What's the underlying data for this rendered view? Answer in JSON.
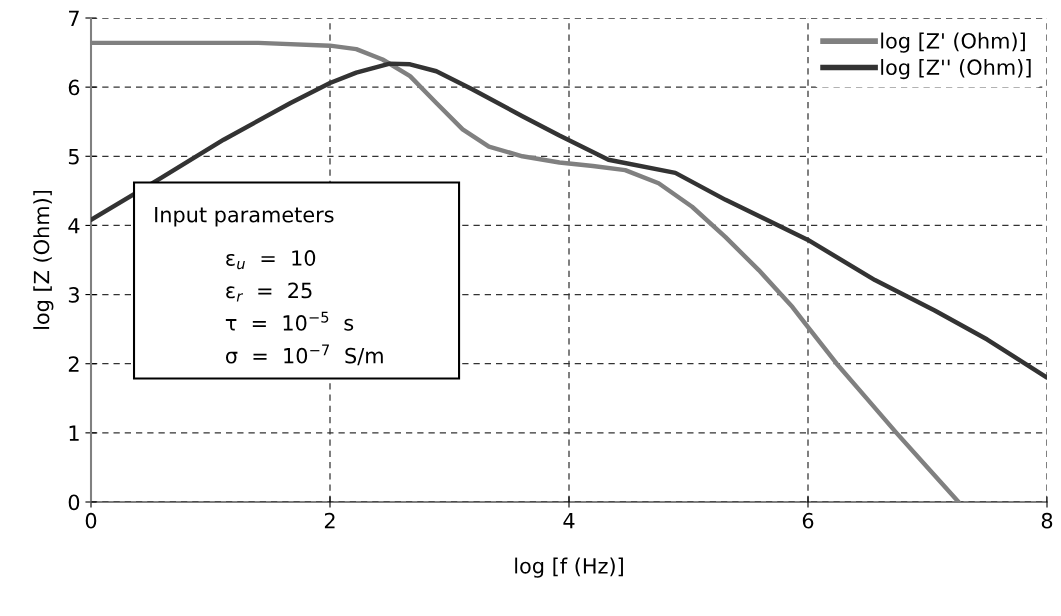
{
  "chart_data": {
    "type": "line",
    "xlabel": "log [f (Hz)]",
    "ylabel": "log [Z (Ohm)]",
    "xlim": [
      0,
      8
    ],
    "ylim": [
      0,
      7
    ],
    "xticks": [
      0,
      2,
      4,
      6,
      8
    ],
    "yticks": [
      0,
      1,
      2,
      3,
      4,
      5,
      6,
      7
    ],
    "grid": true,
    "legend": "top right",
    "marker": "none",
    "line_style": "solid",
    "series": [
      {
        "name": "log [Z' (Ohm)]",
        "color": "#808080",
        "x": [
          0,
          0.5,
          1.0,
          1.4,
          2.0,
          2.22,
          2.44,
          2.67,
          2.89,
          3.11,
          3.33,
          3.61,
          3.92,
          4.2,
          4.47,
          4.75,
          5.03,
          5.31,
          5.59,
          5.87,
          6.0,
          6.24,
          6.5,
          6.74,
          7.0,
          7.26
        ],
        "values": [
          6.64,
          6.64,
          6.64,
          6.64,
          6.6,
          6.55,
          6.4,
          6.16,
          5.77,
          5.39,
          5.14,
          5.0,
          4.91,
          4.86,
          4.8,
          4.61,
          4.27,
          3.83,
          3.35,
          2.82,
          2.53,
          2.0,
          1.48,
          1.0,
          0.5,
          0
        ]
      },
      {
        "name": "log [Z'' (Ohm)]",
        "color": "#333333",
        "x": [
          0,
          0.56,
          1.11,
          1.67,
          2.0,
          2.22,
          2.5,
          2.67,
          2.89,
          3.19,
          3.61,
          3.92,
          4.33,
          4.89,
          5.31,
          6.0,
          6.56,
          7.06,
          7.5,
          8.0
        ],
        "values": [
          4.08,
          4.66,
          5.24,
          5.77,
          6.06,
          6.21,
          6.34,
          6.33,
          6.23,
          5.97,
          5.58,
          5.3,
          4.95,
          4.76,
          4.37,
          3.79,
          3.21,
          2.77,
          2.35,
          1.8
        ]
      }
    ],
    "annotations": [
      "Input parameters",
      "ε$_{u}$  =  10",
      "ε$_{r}$  =  25",
      "τ  =  10$^{−5}$  s",
      "σ  =  10$^{−7}$  S/m"
    ]
  }
}
